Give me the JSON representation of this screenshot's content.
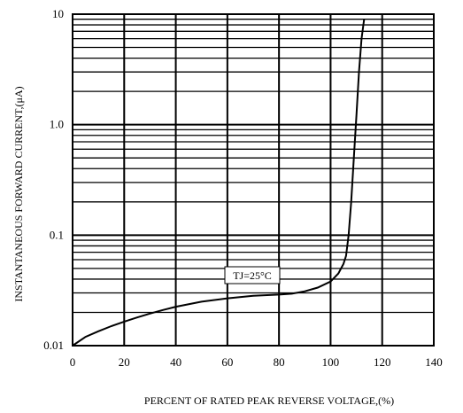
{
  "chart_data": {
    "type": "line",
    "title": "",
    "xlabel": "PERCENT OF RATED PEAK REVERSE VOLTAGE,(%)",
    "ylabel": "INSTANTANEOUS FORWARD CURRENT,(μA)",
    "xlim": [
      0,
      140
    ],
    "ylim": [
      0.01,
      10
    ],
    "y_scale": "log",
    "grid": true,
    "x_ticks": [
      0,
      20,
      40,
      60,
      80,
      100,
      120,
      140
    ],
    "x_tick_labels": [
      "0",
      "20",
      "40",
      "60",
      "80",
      "100",
      "120",
      "140"
    ],
    "y_ticks": [
      0.01,
      0.1,
      1.0,
      10
    ],
    "y_tick_labels": [
      "0.01",
      "0.1",
      "1.0",
      "10"
    ],
    "series": [
      {
        "x": [
          0,
          5,
          10,
          15,
          20,
          25,
          30,
          35,
          40,
          50,
          60,
          70,
          80,
          85,
          90,
          95,
          100,
          103,
          105,
          106,
          107,
          108,
          109,
          110,
          111,
          112,
          113
        ],
        "y": [
          0.01,
          0.012,
          0.0135,
          0.015,
          0.0165,
          0.018,
          0.0195,
          0.021,
          0.0225,
          0.025,
          0.0268,
          0.0283,
          0.029,
          0.0295,
          0.031,
          0.0335,
          0.038,
          0.045,
          0.055,
          0.065,
          0.1,
          0.2,
          0.5,
          1.2,
          3.0,
          6.0,
          9.0
        ]
      }
    ],
    "annotations": [
      {
        "text": "TJ=25°C",
        "x": 87,
        "y": 0.039
      }
    ]
  }
}
